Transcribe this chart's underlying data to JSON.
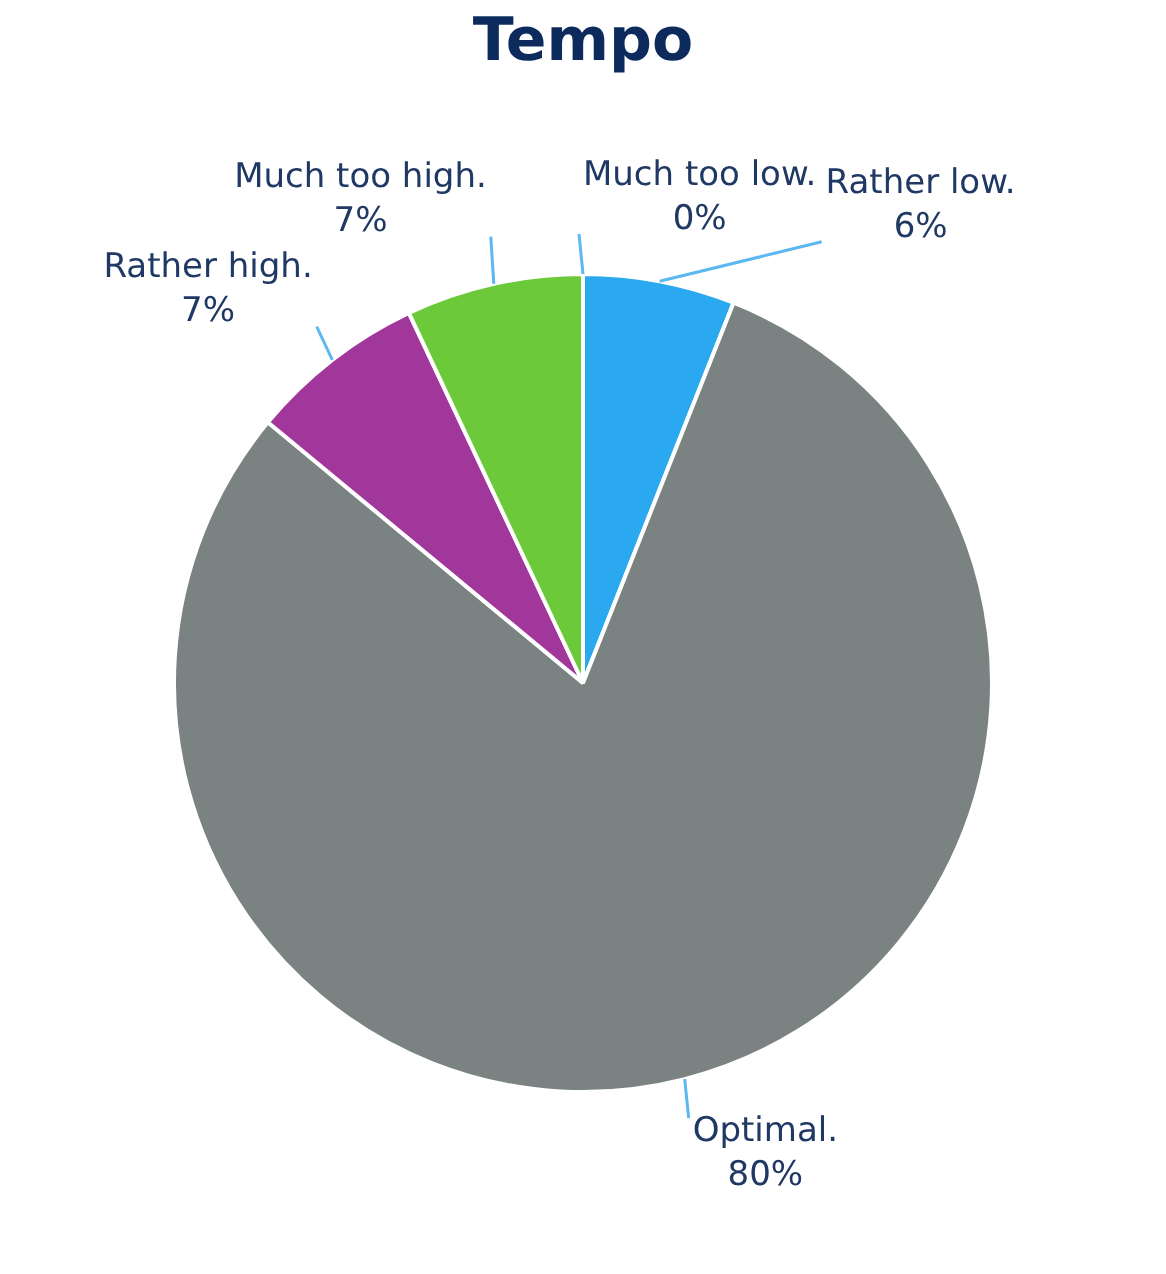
{
  "chart_data": {
    "type": "pie",
    "title": "Tempo",
    "categories": [
      "Much too low.",
      "Rather low.",
      "Optimal.",
      "Rather high.",
      "Much too high."
    ],
    "values": [
      0,
      6,
      80,
      7,
      7
    ],
    "value_labels": [
      "0%",
      "6%",
      "80%",
      "7%",
      "7%"
    ],
    "colors": [
      "#2f8fd8",
      "#2aa8f0",
      "#7b8282",
      "#a1369b",
      "#6bc93a"
    ],
    "legend": false
  }
}
